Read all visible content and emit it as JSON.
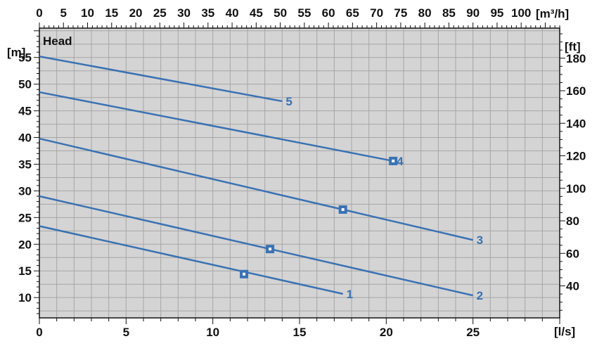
{
  "chart_data": {
    "type": "line",
    "title": "Head",
    "x_bottom": {
      "label": "[l/s]",
      "range": [
        0,
        30
      ],
      "ticks": [
        0,
        5,
        10,
        15,
        20,
        25
      ]
    },
    "x_top": {
      "label": "[m³/h]",
      "range": [
        0,
        108
      ],
      "ticks": [
        0,
        5,
        10,
        15,
        20,
        25,
        30,
        35,
        40,
        45,
        50,
        55,
        60,
        65,
        70,
        75,
        80,
        85,
        90,
        95,
        100
      ]
    },
    "y_left": {
      "label": "[m]",
      "range": [
        6.2,
        60.5
      ],
      "ticks": [
        10,
        15,
        20,
        25,
        30,
        35,
        40,
        45,
        50,
        55
      ]
    },
    "y_right": {
      "label": "[ft]",
      "ticks": [
        40,
        60,
        80,
        100,
        120,
        140,
        160,
        180
      ]
    },
    "grid": true,
    "colors": {
      "curve": "#3a72b4",
      "plot_bg": "#d4d4d4",
      "grid": "#a6a6a6"
    },
    "series": [
      {
        "name": "1",
        "x": [
          0,
          17.5
        ],
        "y": [
          23.4,
          10.7
        ],
        "marker": [
          11.8,
          14.4
        ]
      },
      {
        "name": "2",
        "x": [
          0,
          25
        ],
        "y": [
          29.0,
          10.4
        ],
        "marker": [
          13.3,
          19.1
        ]
      },
      {
        "name": "3",
        "x": [
          0,
          25
        ],
        "y": [
          39.8,
          20.8
        ],
        "marker": [
          17.5,
          26.5
        ]
      },
      {
        "name": "4",
        "x": [
          0,
          20.4
        ],
        "y": [
          48.5,
          35.6
        ],
        "marker": [
          20.4,
          35.6
        ]
      },
      {
        "name": "5",
        "x": [
          0,
          14
        ],
        "y": [
          55.2,
          46.8
        ]
      }
    ]
  }
}
